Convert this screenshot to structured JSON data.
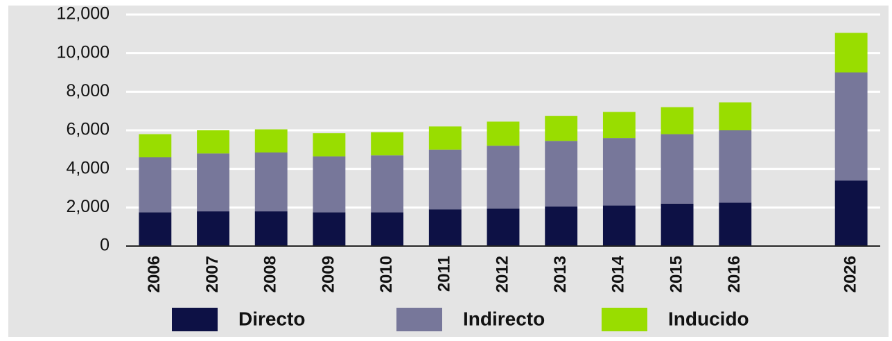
{
  "chart_data": {
    "type": "stacked_bar",
    "categories": [
      "2006",
      "2007",
      "2008",
      "2009",
      "2010",
      "2011",
      "2012",
      "2013",
      "2014",
      "2015",
      "2016",
      null,
      "2026"
    ],
    "series": [
      {
        "name": "Directo",
        "color": "#0d1145",
        "values": [
          1750,
          1800,
          1800,
          1750,
          1750,
          1900,
          1950,
          2050,
          2100,
          2200,
          2250,
          null,
          3400
        ]
      },
      {
        "name": "Indirecto",
        "color": "#77779a",
        "values": [
          2850,
          3000,
          3050,
          2900,
          2950,
          3100,
          3250,
          3400,
          3500,
          3600,
          3750,
          null,
          5600
        ]
      },
      {
        "name": "Inducido",
        "color": "#99dd00",
        "values": [
          1200,
          1200,
          1200,
          1200,
          1200,
          1200,
          1250,
          1300,
          1350,
          1400,
          1450,
          null,
          2050
        ]
      }
    ],
    "ylim": [
      0,
      12000
    ],
    "yticks": [
      0,
      {
        "value": 2000,
        "label": "2,000"
      },
      {
        "value": 4000,
        "label": "4,000"
      },
      {
        "value": 6000,
        "label": "6,000"
      },
      {
        "value": 8000,
        "label": "8,000"
      },
      {
        "value": 10000,
        "label": "10,000"
      },
      {
        "value": 12000,
        "label": "12,000"
      }
    ],
    "grid": true,
    "legend": "bottom"
  }
}
